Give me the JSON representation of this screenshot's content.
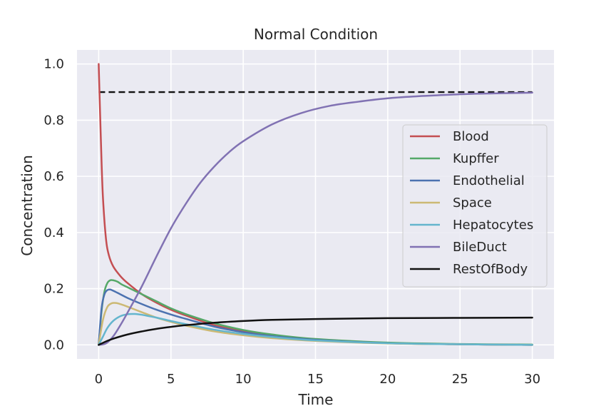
{
  "chart_data": {
    "type": "line",
    "title": "Normal Condition",
    "xlabel": "Time",
    "ylabel": "Concentration",
    "xlim": [
      -1.5,
      31.5
    ],
    "ylim": [
      -0.05,
      1.05
    ],
    "xticks": [
      0,
      5,
      10,
      15,
      20,
      25,
      30
    ],
    "yticks": [
      0.0,
      0.2,
      0.4,
      0.6,
      0.8,
      1.0
    ],
    "xtick_labels": [
      "0",
      "5",
      "10",
      "15",
      "20",
      "25",
      "30"
    ],
    "ytick_labels": [
      "0.0",
      "0.2",
      "0.4",
      "0.6",
      "0.8",
      "1.0"
    ],
    "grid": true,
    "legend_position": "center-right",
    "background": "#eaeaf2",
    "series": [
      {
        "name": "Blood",
        "color": "#c44e52",
        "x": [
          0,
          0.1,
          0.2,
          0.3,
          0.5,
          0.7,
          1,
          1.5,
          2,
          3,
          4,
          5,
          6,
          8,
          10,
          12,
          15,
          20,
          25,
          30
        ],
        "y": [
          1.0,
          0.82,
          0.65,
          0.52,
          0.38,
          0.32,
          0.28,
          0.245,
          0.22,
          0.18,
          0.15,
          0.125,
          0.105,
          0.07,
          0.048,
          0.033,
          0.018,
          0.006,
          0.002,
          0.0
        ]
      },
      {
        "name": "Kupffer",
        "color": "#55a868",
        "x": [
          0,
          0.2,
          0.4,
          0.6,
          0.8,
          1,
          1.3,
          1.6,
          2,
          3,
          4,
          5,
          6,
          8,
          10,
          12,
          15,
          20,
          25,
          30
        ],
        "y": [
          0.0,
          0.12,
          0.19,
          0.22,
          0.23,
          0.23,
          0.225,
          0.215,
          0.205,
          0.18,
          0.155,
          0.13,
          0.11,
          0.077,
          0.053,
          0.037,
          0.021,
          0.008,
          0.003,
          0.001
        ]
      },
      {
        "name": "Endothelial",
        "color": "#4c72b0",
        "x": [
          0,
          0.2,
          0.4,
          0.6,
          0.8,
          1,
          1.5,
          2,
          3,
          4,
          5,
          6,
          8,
          10,
          12,
          15,
          20,
          25,
          30
        ],
        "y": [
          0.0,
          0.13,
          0.18,
          0.195,
          0.197,
          0.193,
          0.18,
          0.167,
          0.145,
          0.125,
          0.108,
          0.093,
          0.065,
          0.045,
          0.031,
          0.018,
          0.006,
          0.002,
          0.0
        ]
      },
      {
        "name": "Space",
        "color": "#ccb974",
        "x": [
          0,
          0.3,
          0.6,
          0.9,
          1.2,
          1.5,
          2,
          3,
          4,
          5,
          6,
          8,
          10,
          12,
          15,
          20,
          25,
          30
        ],
        "y": [
          0.0,
          0.09,
          0.135,
          0.148,
          0.149,
          0.145,
          0.136,
          0.116,
          0.097,
          0.082,
          0.069,
          0.048,
          0.034,
          0.024,
          0.014,
          0.005,
          0.002,
          0.0
        ]
      },
      {
        "name": "Hepatocytes",
        "color": "#64b5cd",
        "x": [
          0,
          0.3,
          0.6,
          1,
          1.5,
          2,
          2.5,
          3,
          3.5,
          4,
          5,
          6,
          8,
          10,
          12,
          15,
          20,
          25,
          30
        ],
        "y": [
          0.0,
          0.03,
          0.06,
          0.085,
          0.102,
          0.109,
          0.11,
          0.107,
          0.102,
          0.097,
          0.085,
          0.074,
          0.054,
          0.039,
          0.028,
          0.016,
          0.006,
          0.002,
          0.0
        ]
      },
      {
        "name": "BileDuct",
        "color": "#8172b3",
        "x": [
          0,
          0.5,
          1,
          1.5,
          2,
          3,
          4,
          5,
          6,
          7,
          8,
          9,
          10,
          12,
          14,
          16,
          18,
          20,
          22,
          24,
          26,
          28,
          30
        ],
        "y": [
          0.0,
          0.005,
          0.03,
          0.07,
          0.115,
          0.21,
          0.315,
          0.415,
          0.5,
          0.575,
          0.635,
          0.685,
          0.725,
          0.785,
          0.825,
          0.851,
          0.866,
          0.878,
          0.885,
          0.89,
          0.894,
          0.896,
          0.898
        ]
      },
      {
        "name": "RestOfBody",
        "color": "#111111",
        "x": [
          0,
          0.5,
          1,
          2,
          3,
          4,
          5,
          6,
          8,
          10,
          12,
          15,
          20,
          25,
          30
        ],
        "y": [
          0.0,
          0.012,
          0.022,
          0.037,
          0.048,
          0.057,
          0.064,
          0.07,
          0.079,
          0.085,
          0.089,
          0.092,
          0.095,
          0.096,
          0.097
        ]
      }
    ],
    "reference_line": {
      "y": 0.9,
      "x_start": 0,
      "x_end": 30,
      "style": "dashed",
      "color": "#111111"
    }
  }
}
